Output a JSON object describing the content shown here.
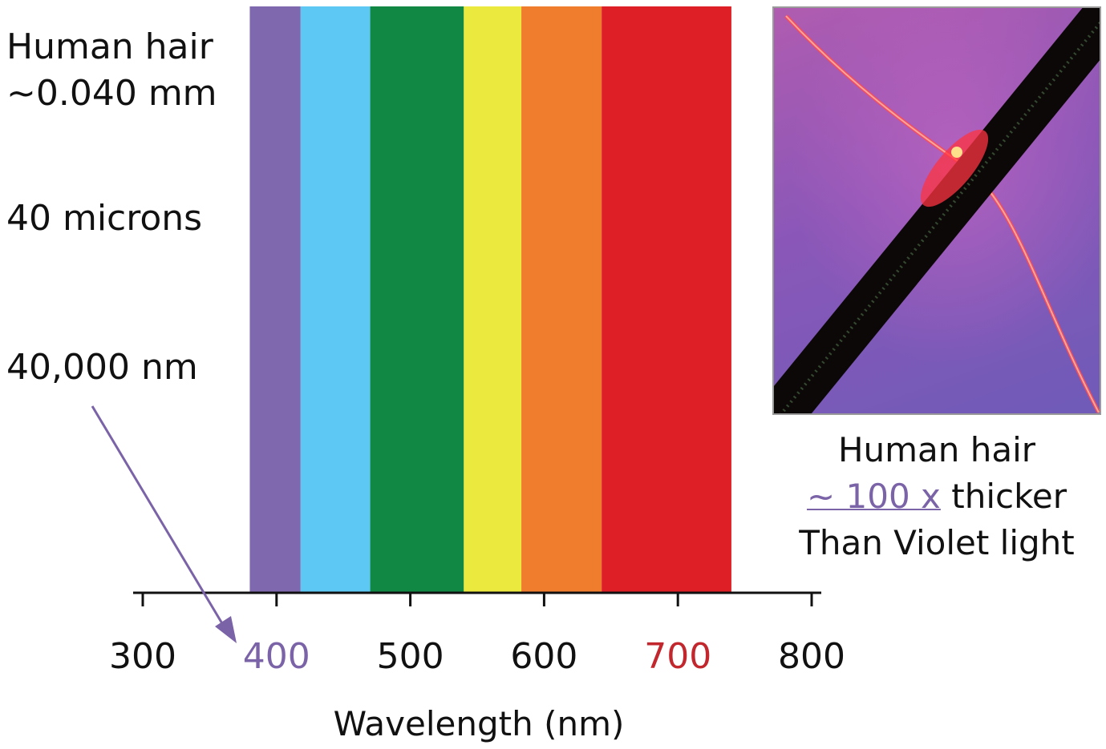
{
  "left_labels": {
    "line1": "Human hair",
    "line2": "~0.040 mm",
    "line3": "40 microns",
    "line4": "40,000 nm"
  },
  "spectrum": {
    "bands": [
      {
        "name": "violet",
        "from": 380,
        "to": 418,
        "color": "#7f68ad"
      },
      {
        "name": "blue",
        "from": 418,
        "to": 470,
        "color": "#5ec8f5"
      },
      {
        "name": "green",
        "from": 470,
        "to": 540,
        "color": "#118844"
      },
      {
        "name": "yellow",
        "from": 540,
        "to": 583,
        "color": "#ece93e"
      },
      {
        "name": "orange",
        "from": 583,
        "to": 643,
        "color": "#f07c2d"
      },
      {
        "name": "red",
        "from": 643,
        "to": 740,
        "color": "#de2026"
      }
    ]
  },
  "axis": {
    "ticks": [
      {
        "value": 300,
        "label": "300",
        "color": "#111111"
      },
      {
        "value": 400,
        "label": "400",
        "color": "#7b63a8"
      },
      {
        "value": 500,
        "label": "500",
        "color": "#111111"
      },
      {
        "value": 600,
        "label": "600",
        "color": "#111111"
      },
      {
        "value": 700,
        "label": "700",
        "color": "#c1272d"
      },
      {
        "value": 800,
        "label": "800",
        "color": "#111111"
      }
    ],
    "title": "Wavelength (nm)",
    "range": [
      300,
      800
    ]
  },
  "caption": {
    "line1": "Human hair",
    "line2_accent": "~ 100 x",
    "line2_rest": " thicker",
    "line3": "Than Violet light"
  },
  "colors": {
    "arrow": "#7b63a8",
    "axis": "#111111"
  },
  "photo": {
    "subject": "microscope image of a human hair crossed by a laser beam"
  }
}
